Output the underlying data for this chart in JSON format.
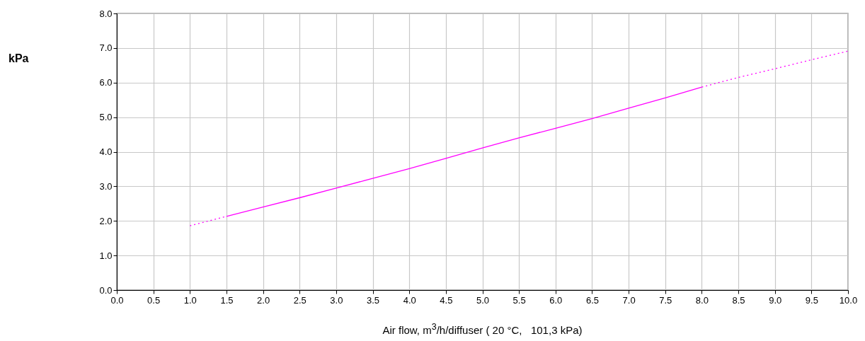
{
  "chart_data": {
    "type": "line",
    "xlabel": "Air flow, m$^{3}$/h/diffuser ( 20 °C,   101,3 kPa)",
    "annotations": [
      "kPa"
    ],
    "xlim": [
      0,
      10
    ],
    "ylim": [
      0,
      8
    ],
    "xticks": [
      {
        "value": 0,
        "label": "0.0"
      },
      0.5,
      {
        "value": 1,
        "label": "1.0"
      },
      1.5,
      {
        "value": 2,
        "label": "2.0"
      },
      2.5,
      {
        "value": 3,
        "label": "3.0"
      },
      3.5,
      {
        "value": 4,
        "label": "4.0"
      },
      4.5,
      {
        "value": 5,
        "label": "5.0"
      },
      5.5,
      {
        "value": 6,
        "label": "6.0"
      },
      6.5,
      {
        "value": 7,
        "label": "7.0"
      },
      7.5,
      {
        "value": 8,
        "label": "8.0"
      },
      8.5,
      {
        "value": 9,
        "label": "9.0"
      },
      9.5,
      {
        "value": 10,
        "label": "10.0"
      }
    ],
    "yticks": [
      {
        "value": 0,
        "label": "0.0"
      },
      {
        "value": 1,
        "label": "1.0"
      },
      {
        "value": 2,
        "label": "2.0"
      },
      {
        "value": 3,
        "label": "3.0"
      },
      {
        "value": 4,
        "label": "4.0"
      },
      {
        "value": 5,
        "label": "5.0"
      },
      {
        "value": 6,
        "label": "6.0"
      },
      {
        "value": 7,
        "label": "7.0"
      },
      {
        "value": 8,
        "label": "8.0"
      }
    ],
    "grid": true,
    "marker": "none",
    "series": [
      {
        "color": "#ff00ff",
        "line_style": "dotted",
        "x": [
          1,
          1.5
        ],
        "values": [
          1.86,
          2.13
        ]
      },
      {
        "color": "#ff00ff",
        "line_style": "solid",
        "x": [
          1.5,
          2,
          2.5,
          3,
          3.5,
          4,
          4.5,
          5,
          5.5,
          6,
          6.5,
          7,
          7.5,
          8
        ],
        "values": [
          2.13,
          2.4,
          2.67,
          2.95,
          3.23,
          3.51,
          3.81,
          4.11,
          4.4,
          4.68,
          4.96,
          5.26,
          5.56,
          5.87
        ]
      },
      {
        "color": "#ff00ff",
        "line_style": "dotted",
        "x": [
          8,
          8.5,
          9,
          9.5,
          10
        ],
        "values": [
          5.87,
          6.15,
          6.4,
          6.66,
          6.91
        ]
      }
    ]
  }
}
